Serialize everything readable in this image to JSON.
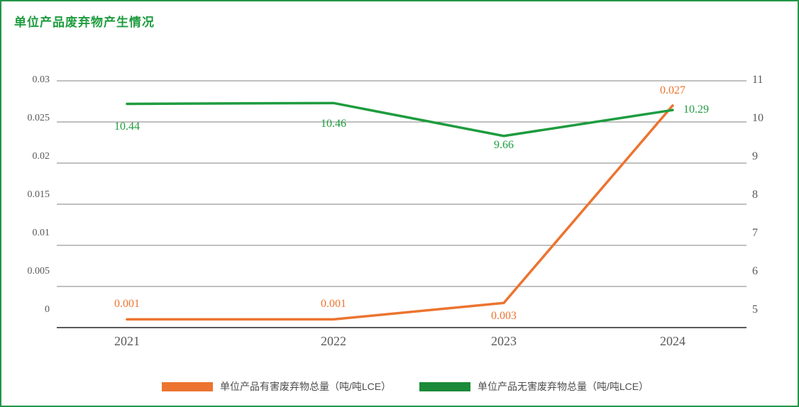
{
  "title": "单位产品废弃物产生情况",
  "colors": {
    "title_green": "#1E9C3F",
    "border_green": "#239547",
    "hazardous_orange": "#EC7430",
    "nonhazardous_green": "#1E9C3F",
    "legend_green": "#1B8A39",
    "grid_gray": "#808080",
    "axis_gray": "#595959",
    "tick_text": "#595959",
    "legend_text": "#4D4D4D"
  },
  "chart_data": {
    "type": "line",
    "title": "单位产品废弃物产生情况",
    "categories": [
      "2021",
      "2022",
      "2023",
      "2024"
    ],
    "series": [
      {
        "name": "单位产品有害废弃物总量（吨/吨LCE）",
        "axis": "left",
        "color": "#EC7430",
        "values": [
          0.001,
          0.001,
          0.003,
          0.027
        ],
        "point_labels": [
          "0.001",
          "0.001",
          "0.003",
          "0.027"
        ],
        "label_placement": [
          "above",
          "above",
          "below",
          "above"
        ]
      },
      {
        "name": "单位产品无害废弃物总量（吨/吨LCE）",
        "axis": "right",
        "color": "#1E9C3F",
        "values": [
          10.44,
          10.46,
          9.66,
          10.29
        ],
        "point_labels": [
          "10.44",
          "10.46",
          "9.66",
          "10.29"
        ],
        "label_placement": [
          "below",
          "below",
          "below",
          "right"
        ]
      }
    ],
    "left_axis": {
      "min": 0,
      "max": 0.03,
      "ticks": [
        "0.03",
        "0.025",
        "0.02",
        "0.015",
        "0.01",
        "0.005",
        "0"
      ]
    },
    "right_axis": {
      "min": 5,
      "max": 11,
      "ticks": [
        "11",
        "10",
        "9",
        "8",
        "7",
        "6",
        "5"
      ]
    },
    "grid": true,
    "legend_position": "bottom"
  },
  "legend": {
    "items": [
      {
        "label": "单位产品有害废弃物总量（吨/吨LCE）",
        "color": "#EC7430"
      },
      {
        "label": "单位产品无害废弃物总量（吨/吨LCE）",
        "color": "#1B8A39"
      }
    ]
  }
}
